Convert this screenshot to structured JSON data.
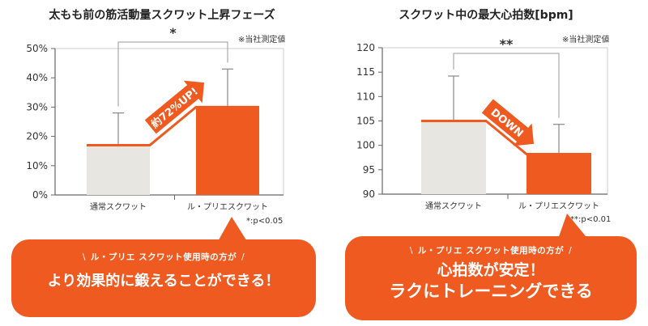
{
  "colors": {
    "accent": "#ee5a20",
    "bar_light": "#e8e6e0",
    "axis": "#666666",
    "grid": "#cccccc"
  },
  "chart_data": [
    {
      "type": "bar",
      "title": "太もも前の筋活動量スクワット上昇フェーズ",
      "note": "※当社測定値",
      "categories": [
        "通常スクワット",
        "ル・プリエスクワット"
      ],
      "series": [
        {
          "values": [
            17,
            30
          ],
          "error_upper": [
            28,
            43
          ]
        }
      ],
      "y_ticks": [
        "0%",
        "10%",
        "20%",
        "30%",
        "40%",
        "50%"
      ],
      "ylim": [
        0,
        50
      ],
      "significance_mark": "*",
      "arrow_label": "約72%UP!",
      "p_note": "*:p<0.05"
    },
    {
      "type": "bar",
      "title": "スクワット中の最大心拍数[bpm]",
      "note": "※当社測定値",
      "categories": [
        "通常スクワット",
        "ル・プリエスクワット"
      ],
      "series": [
        {
          "values": [
            105,
            98.2
          ],
          "error_upper": [
            114.2,
            104.3
          ]
        }
      ],
      "y_ticks": [
        "90",
        "95",
        "100",
        "105",
        "110",
        "115",
        "120"
      ],
      "ylim": [
        90,
        120
      ],
      "significance_mark": "**",
      "arrow_label": "DOWN",
      "p_note": "**:p<0.01"
    }
  ],
  "bubbles": [
    {
      "sub": "ル・プリエ スクワット使用時の方が",
      "lines": [
        "より効果的に鍛えることができる！"
      ]
    },
    {
      "sub": "ル・プリエ スクワット使用時の方が",
      "lines": [
        "心拍数が安定！",
        "ラクにトレーニングできる"
      ]
    }
  ]
}
